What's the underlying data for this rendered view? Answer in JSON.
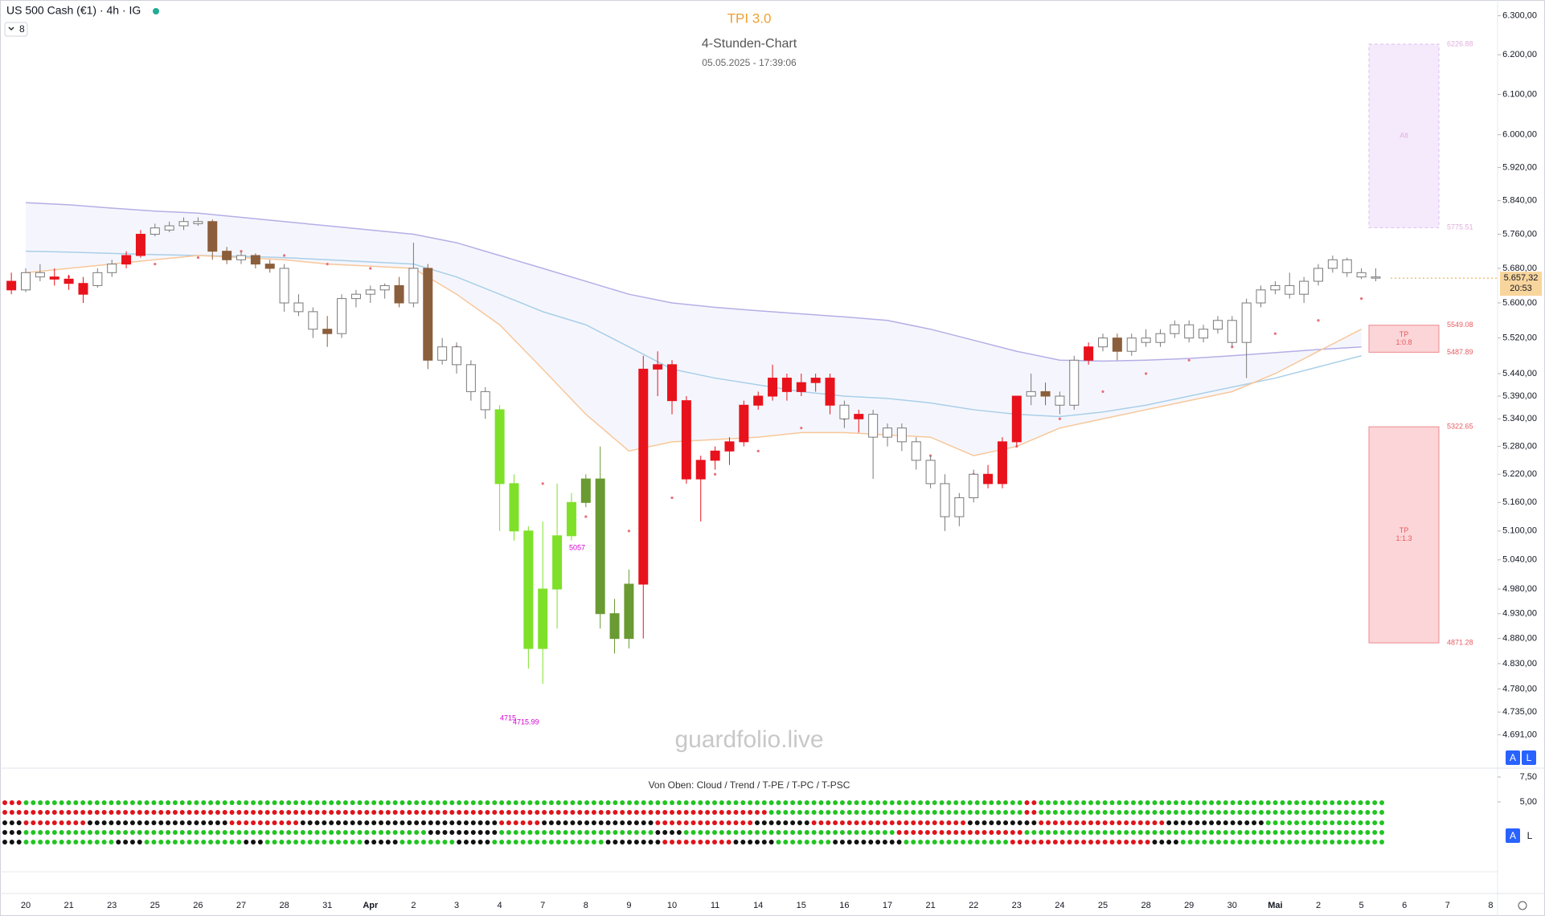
{
  "header": {
    "symbol": "US 500 Cash (€1) · 4h · IG",
    "indicators": 8,
    "buttons": [
      "A",
      "L"
    ]
  },
  "chart_data": {
    "type": "candlestick",
    "title": "TPI 3.0",
    "subtitle": "4-Stunden-Chart",
    "timestamp": "05.05.2025 - 17:39:06",
    "watermark": "guardfolio.live",
    "log": true,
    "grid": false,
    "categories": [
      "20",
      "21",
      "23",
      "25",
      "26",
      "27",
      "28",
      "31",
      "Apr",
      "2",
      "3",
      "4",
      "7",
      "8",
      "9",
      "10",
      "11",
      "14",
      "15",
      "16",
      "17",
      "21",
      "22",
      "23",
      "24",
      "25",
      "28",
      "29",
      "30",
      "Mai",
      "2",
      "5",
      "6",
      "7",
      "8"
    ],
    "ylim": [
      4691,
      6300
    ],
    "yticks": [
      {
        "value": 4691,
        "label": "4.691,00"
      },
      {
        "value": 4735,
        "label": "4.735,00"
      },
      {
        "value": 4780,
        "label": "4.780,00"
      },
      {
        "value": 4830,
        "label": "4.830,00"
      },
      {
        "value": 4880,
        "label": "4.880,00"
      },
      {
        "value": 4930,
        "label": "4.930,00"
      },
      {
        "value": 4980,
        "label": "4.980,00"
      },
      {
        "value": 5040,
        "label": "5.040,00"
      },
      {
        "value": 5100,
        "label": "5.100,00"
      },
      {
        "value": 5160,
        "label": "5.160,00"
      },
      {
        "value": 5220,
        "label": "5.220,00"
      },
      {
        "value": 5280,
        "label": "5.280,00"
      },
      {
        "value": 5340,
        "label": "5.340,00"
      },
      {
        "value": 5390,
        "label": "5.390,00"
      },
      {
        "value": 5440,
        "label": "5.440,00"
      },
      {
        "value": 5520,
        "label": "5.520,00"
      },
      {
        "value": 5600,
        "label": "5.600,00"
      },
      {
        "value": 5680,
        "label": "5.680,00"
      },
      {
        "value": 5760,
        "label": "5.760,00"
      },
      {
        "value": 5840,
        "label": "5.840,00"
      },
      {
        "value": 5920,
        "label": "5.920,00"
      },
      {
        "value": 6000,
        "label": "6.000,00"
      },
      {
        "value": 6100,
        "label": "6.100,00"
      },
      {
        "value": 6200,
        "label": "6.200,00"
      },
      {
        "value": 6300,
        "label": "6.300,00"
      }
    ],
    "candle_colors": {
      "r": "#e8121c",
      "b": "#8b5e3c",
      "g": "#ffffff",
      "l": "#7fe02a",
      "d": "#6a9a32"
    },
    "candles": [
      [
        [
          5650,
          5670,
          5620,
          5630,
          "r"
        ],
        [
          5630,
          5680,
          5625,
          5670,
          "g"
        ],
        [
          5670,
          5690,
          5650,
          5660,
          "g"
        ]
      ],
      [
        [
          5660,
          5680,
          5640,
          5655,
          "r"
        ],
        [
          5655,
          5665,
          5630,
          5645,
          "r"
        ],
        [
          5645,
          5660,
          5600,
          5620,
          "r"
        ]
      ],
      [
        [
          5640,
          5680,
          5635,
          5670,
          "g"
        ],
        [
          5670,
          5700,
          5660,
          5690,
          "g"
        ],
        [
          5690,
          5720,
          5680,
          5710,
          "r"
        ]
      ],
      [
        [
          5710,
          5770,
          5705,
          5760,
          "r"
        ],
        [
          5760,
          5785,
          5755,
          5775,
          "g"
        ],
        [
          5770,
          5790,
          5765,
          5780,
          "g"
        ]
      ],
      [
        [
          5780,
          5800,
          5770,
          5790,
          "g"
        ],
        [
          5790,
          5800,
          5780,
          5785,
          "g"
        ],
        [
          5790,
          5795,
          5700,
          5720,
          "b"
        ]
      ],
      [
        [
          5720,
          5730,
          5690,
          5700,
          "b"
        ],
        [
          5700,
          5720,
          5690,
          5710,
          "g"
        ],
        [
          5710,
          5715,
          5680,
          5690,
          "b"
        ]
      ],
      [
        [
          5690,
          5700,
          5670,
          5680,
          "b"
        ],
        [
          5680,
          5690,
          5580,
          5600,
          "g"
        ],
        [
          5600,
          5620,
          5570,
          5580,
          "g"
        ]
      ],
      [
        [
          5580,
          5590,
          5520,
          5540,
          "g"
        ],
        [
          5540,
          5570,
          5500,
          5530,
          "b"
        ],
        [
          5530,
          5620,
          5520,
          5610,
          "g"
        ]
      ],
      [
        [
          5610,
          5630,
          5590,
          5620,
          "g"
        ],
        [
          5620,
          5640,
          5600,
          5630,
          "g"
        ],
        [
          5630,
          5645,
          5610,
          5640,
          "g"
        ]
      ],
      [
        [
          5640,
          5660,
          5590,
          5600,
          "b"
        ],
        [
          5600,
          5740,
          5590,
          5680,
          "g"
        ],
        [
          5680,
          5690,
          5450,
          5470,
          "b"
        ]
      ],
      [
        [
          5470,
          5520,
          5460,
          5500,
          "g"
        ],
        [
          5500,
          5510,
          5440,
          5460,
          "g"
        ],
        [
          5460,
          5470,
          5380,
          5400,
          "g"
        ]
      ],
      [
        [
          5400,
          5410,
          5340,
          5360,
          "g"
        ],
        [
          5360,
          5370,
          5100,
          5200,
          "l"
        ],
        [
          5200,
          5220,
          5080,
          5100,
          "l"
        ]
      ],
      [
        [
          5100,
          5110,
          4820,
          4860,
          "l"
        ],
        [
          4860,
          5120,
          4790,
          4980,
          "l"
        ],
        [
          4980,
          5200,
          4900,
          5090,
          "l"
        ]
      ],
      [
        [
          5090,
          5180,
          5080,
          5160,
          "l"
        ],
        [
          5160,
          5220,
          5150,
          5210,
          "d"
        ],
        [
          5210,
          5280,
          4900,
          4930,
          "d"
        ]
      ],
      [
        [
          4930,
          4960,
          4850,
          4880,
          "d"
        ],
        [
          4880,
          5020,
          4860,
          4990,
          "d"
        ],
        [
          4990,
          5480,
          4880,
          5450,
          "r"
        ]
      ],
      [
        [
          5450,
          5490,
          5390,
          5460,
          "r"
        ],
        [
          5460,
          5470,
          5350,
          5380,
          "r"
        ],
        [
          5380,
          5390,
          5200,
          5210,
          "r"
        ]
      ],
      [
        [
          5210,
          5260,
          5120,
          5250,
          "r"
        ],
        [
          5250,
          5280,
          5230,
          5270,
          "r"
        ],
        [
          5270,
          5300,
          5240,
          5290,
          "r"
        ]
      ],
      [
        [
          5290,
          5380,
          5280,
          5370,
          "r"
        ],
        [
          5370,
          5400,
          5360,
          5390,
          "r"
        ],
        [
          5390,
          5460,
          5380,
          5430,
          "r"
        ]
      ],
      [
        [
          5430,
          5440,
          5380,
          5400,
          "r"
        ],
        [
          5400,
          5440,
          5390,
          5420,
          "r"
        ],
        [
          5420,
          5440,
          5400,
          5430,
          "r"
        ]
      ],
      [
        [
          5430,
          5440,
          5350,
          5370,
          "r"
        ],
        [
          5370,
          5380,
          5320,
          5340,
          "g"
        ],
        [
          5340,
          5360,
          5310,
          5350,
          "r"
        ]
      ],
      [
        [
          5350,
          5360,
          5210,
          5300,
          "g"
        ],
        [
          5300,
          5330,
          5280,
          5320,
          "g"
        ],
        [
          5320,
          5330,
          5270,
          5290,
          "g"
        ]
      ],
      [
        [
          5290,
          5300,
          5230,
          5250,
          "g"
        ],
        [
          5250,
          5260,
          5190,
          5200,
          "g"
        ],
        [
          5200,
          5220,
          5100,
          5130,
          "g"
        ]
      ],
      [
        [
          5130,
          5180,
          5110,
          5170,
          "g"
        ],
        [
          5170,
          5230,
          5160,
          5220,
          "g"
        ],
        [
          5220,
          5240,
          5190,
          5200,
          "r"
        ]
      ],
      [
        [
          5200,
          5300,
          5190,
          5290,
          "r"
        ],
        [
          5290,
          5390,
          5280,
          5390,
          "r"
        ],
        [
          5390,
          5440,
          5370,
          5400,
          "g"
        ]
      ],
      [
        [
          5400,
          5420,
          5370,
          5390,
          "b"
        ],
        [
          5390,
          5400,
          5350,
          5370,
          "g"
        ],
        [
          5370,
          5480,
          5360,
          5470,
          "g"
        ]
      ],
      [
        [
          5470,
          5510,
          5460,
          5500,
          "r"
        ],
        [
          5500,
          5530,
          5490,
          5520,
          "g"
        ],
        [
          5520,
          5530,
          5470,
          5490,
          "b"
        ]
      ],
      [
        [
          5490,
          5530,
          5480,
          5520,
          "g"
        ],
        [
          5520,
          5540,
          5500,
          5510,
          "g"
        ],
        [
          5510,
          5540,
          5500,
          5530,
          "g"
        ]
      ],
      [
        [
          5530,
          5560,
          5520,
          5550,
          "g"
        ],
        [
          5550,
          5560,
          5510,
          5520,
          "g"
        ],
        [
          5520,
          5550,
          5510,
          5540,
          "g"
        ]
      ],
      [
        [
          5540,
          5570,
          5530,
          5560,
          "g"
        ],
        [
          5560,
          5570,
          5500,
          5510,
          "g"
        ],
        [
          5510,
          5610,
          5430,
          5600,
          "g"
        ]
      ],
      [
        [
          5600,
          5640,
          5590,
          5630,
          "g"
        ],
        [
          5630,
          5650,
          5620,
          5640,
          "g"
        ],
        [
          5640,
          5670,
          5610,
          5620,
          "g"
        ]
      ],
      [
        [
          5620,
          5660,
          5600,
          5650,
          "g"
        ],
        [
          5650,
          5690,
          5640,
          5680,
          "g"
        ],
        [
          5680,
          5710,
          5670,
          5700,
          "g"
        ]
      ],
      [
        [
          5700,
          5705,
          5660,
          5670,
          "g"
        ],
        [
          5670,
          5680,
          5655,
          5660,
          "g"
        ],
        [
          5660,
          5680,
          5650,
          5657.32,
          "g"
        ]
      ],
      [],
      [],
      []
    ],
    "series": [
      {
        "color": "#b4aee6",
        "values": [
          5835,
          5830,
          5822,
          5815,
          5810,
          5800,
          5790,
          5780,
          5770,
          5760,
          5740,
          5710,
          5680,
          5650,
          5620,
          5600,
          5590,
          5582,
          5575,
          5568,
          5560,
          5540,
          5515,
          5490,
          5470,
          5468,
          5470,
          5474,
          5480,
          5487,
          5494,
          5500,
          null,
          null,
          null
        ]
      },
      {
        "color": "#a9cfe8",
        "values": [
          5720,
          5718,
          5715,
          5712,
          5710,
          5708,
          5705,
          5700,
          5695,
          5690,
          5660,
          5620,
          5580,
          5550,
          5500,
          5450,
          5430,
          5415,
          5400,
          5390,
          5385,
          5375,
          5360,
          5350,
          5345,
          5355,
          5370,
          5390,
          5410,
          5430,
          5455,
          5480,
          null,
          null,
          null
        ]
      },
      {
        "color": "#f7c79a",
        "values": [
          5670,
          5680,
          5690,
          5700,
          5710,
          5705,
          5700,
          5690,
          5685,
          5680,
          5620,
          5550,
          5450,
          5350,
          5270,
          5290,
          5295,
          5300,
          5310,
          5310,
          5305,
          5300,
          5260,
          5280,
          5320,
          5340,
          5360,
          5380,
          5400,
          5440,
          5490,
          5540,
          null,
          null,
          null
        ]
      }
    ],
    "trail": {
      "color": "#e8707a",
      "values": [
        5650,
        5660,
        5675,
        5690,
        5705,
        5720,
        5710,
        5690,
        5680,
        5670,
        5500,
        5350,
        5200,
        5130,
        5100,
        5170,
        5220,
        5270,
        5320,
        5340,
        5310,
        5260,
        5220,
        5280,
        5340,
        5400,
        5440,
        5470,
        5500,
        5530,
        5560,
        5610,
        null,
        null,
        null
      ]
    },
    "zones": [
      {
        "top": 6226.88,
        "bottom": 5775.51,
        "text": [
          "Alt"
        ],
        "fill": "#f5eafc",
        "stroke": "#dcbcef",
        "label_color": "#e2aede"
      },
      {
        "top": 5549.08,
        "bottom": 5487.89,
        "text": [
          "TP",
          "1:0.8"
        ],
        "fill": "#fbd5d7",
        "stroke": "#ec8a8f",
        "label_color": "#e85a60"
      },
      {
        "top": 5322.65,
        "bottom": 4871.28,
        "text": [
          "TP",
          "1:1.3"
        ],
        "fill": "#fbd5d7",
        "stroke": "#ec8a8f",
        "label_color": "#e85a60"
      }
    ],
    "annotations": [
      "5057",
      "4715",
      "4715.99"
    ],
    "last_price": {
      "value": 5657.32,
      "label": "5.657,32"
    },
    "countdown": "20:53"
  },
  "indicator": {
    "title": "Von Oben: Cloud / Trend / T-PE / T-PC / T-PSC",
    "yticks": [
      {
        "value": 7.5,
        "label": "7,50"
      },
      {
        "value": 5,
        "label": "5,00"
      }
    ],
    "dot_colors": {
      "r": "#e0141c",
      "g": "#22c422",
      "b": "#111111"
    },
    "rows": [
      [
        [
          "r",
          3
        ],
        [
          "g",
          141
        ],
        [
          "r",
          2
        ],
        [
          "g",
          49
        ]
      ],
      [
        [
          "r",
          108
        ],
        [
          "g",
          36
        ],
        [
          "r",
          2
        ],
        [
          "g",
          49
        ]
      ],
      [
        [
          "b",
          3
        ],
        [
          "r",
          9
        ],
        [
          "b",
          20
        ],
        [
          "r",
          10
        ],
        [
          "b",
          28
        ],
        [
          "r",
          6
        ],
        [
          "b",
          16
        ],
        [
          "r",
          14
        ],
        [
          "b",
          8
        ],
        [
          "r",
          22
        ],
        [
          "b",
          10
        ],
        [
          "r",
          18
        ],
        [
          "b",
          14
        ],
        [
          "g",
          17
        ]
      ],
      [
        [
          "b",
          3
        ],
        [
          "g",
          57
        ],
        [
          "b",
          10
        ],
        [
          "g",
          22
        ],
        [
          "b",
          4
        ],
        [
          "g",
          30
        ],
        [
          "r",
          18
        ],
        [
          "g",
          51
        ]
      ],
      [
        [
          "b",
          3
        ],
        [
          "g",
          13
        ],
        [
          "b",
          4
        ],
        [
          "g",
          14
        ],
        [
          "b",
          3
        ],
        [
          "g",
          14
        ],
        [
          "b",
          5
        ],
        [
          "g",
          8
        ],
        [
          "b",
          5
        ],
        [
          "g",
          16
        ],
        [
          "b",
          8
        ],
        [
          "r",
          10
        ],
        [
          "b",
          6
        ],
        [
          "g",
          8
        ],
        [
          "b",
          10
        ],
        [
          "g",
          15
        ],
        [
          "r",
          20
        ],
        [
          "b",
          4
        ],
        [
          "g",
          29
        ]
      ]
    ],
    "buttons": [
      "A",
      "L"
    ]
  }
}
